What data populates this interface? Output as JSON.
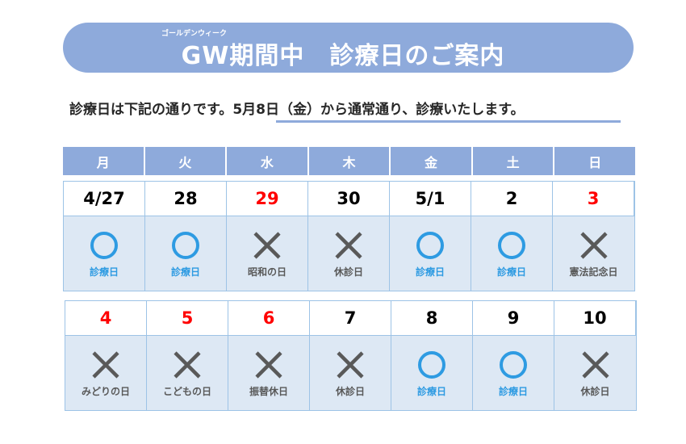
{
  "header": {
    "ruby": "ゴールデンウィーク",
    "title": "GW期間中　診療日のご案内"
  },
  "notice": {
    "prefix": "診療日は下記の通りです。",
    "highlight": "5月8日（金）から通常通り、診療いたします。"
  },
  "weekdays": [
    "月",
    "火",
    "水",
    "木",
    "金",
    "土",
    "日"
  ],
  "colors": {
    "accent": "#8eaadb",
    "open": "#2e9be2",
    "closed": "#595959",
    "holiday": "#ff0000",
    "cell_bg": "#dde8f4"
  },
  "weeks": [
    [
      {
        "date": "4/27",
        "holiday": false,
        "open": true,
        "label": "診療日"
      },
      {
        "date": "28",
        "holiday": false,
        "open": true,
        "label": "診療日"
      },
      {
        "date": "29",
        "holiday": true,
        "open": false,
        "label": "昭和の日"
      },
      {
        "date": "30",
        "holiday": false,
        "open": false,
        "label": "休診日"
      },
      {
        "date": "5/1",
        "holiday": false,
        "open": true,
        "label": "診療日"
      },
      {
        "date": "2",
        "holiday": false,
        "open": true,
        "label": "診療日"
      },
      {
        "date": "3",
        "holiday": true,
        "open": false,
        "label": "憲法記念日"
      }
    ],
    [
      {
        "date": "4",
        "holiday": true,
        "open": false,
        "label": "みどりの日"
      },
      {
        "date": "5",
        "holiday": true,
        "open": false,
        "label": "こどもの日"
      },
      {
        "date": "6",
        "holiday": true,
        "open": false,
        "label": "振替休日"
      },
      {
        "date": "7",
        "holiday": false,
        "open": false,
        "label": "休診日"
      },
      {
        "date": "8",
        "holiday": false,
        "open": true,
        "label": "診療日"
      },
      {
        "date": "9",
        "holiday": false,
        "open": true,
        "label": "診療日"
      },
      {
        "date": "10",
        "holiday": false,
        "open": false,
        "label": "休診日"
      }
    ]
  ]
}
